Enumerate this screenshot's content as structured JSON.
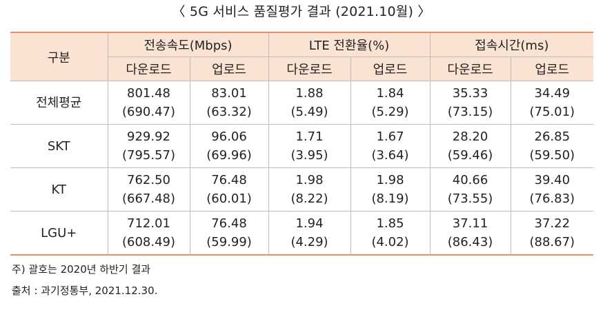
{
  "title": "〈 5G 서비스 품질평가 결과 (2021.10월) 〉",
  "table": {
    "row_header_label": "구분",
    "groups": [
      {
        "label": "전송속도(Mbps)",
        "sub": [
          "다운로드",
          "업로드"
        ]
      },
      {
        "label": "LTE 전환율(%)",
        "sub": [
          "다운로드",
          "업로드"
        ]
      },
      {
        "label": "접속시간(ms)",
        "sub": [
          "다운로드",
          "업로드"
        ]
      }
    ],
    "rows": [
      {
        "label": "전체평균",
        "cells": [
          {
            "main": "801.48",
            "sub": "(690.47)"
          },
          {
            "main": "83.01",
            "sub": "(63.32)"
          },
          {
            "main": "1.88",
            "sub": "(5.49)"
          },
          {
            "main": "1.84",
            "sub": "(5.29)"
          },
          {
            "main": "35.33",
            "sub": "(73.15)"
          },
          {
            "main": "34.49",
            "sub": "(75.01)"
          }
        ]
      },
      {
        "label": "SKT",
        "cells": [
          {
            "main": "929.92",
            "sub": "(795.57)"
          },
          {
            "main": "96.06",
            "sub": "(69.96)"
          },
          {
            "main": "1.71",
            "sub": "(3.95)"
          },
          {
            "main": "1.67",
            "sub": "(3.64)"
          },
          {
            "main": "28.20",
            "sub": "(59.46)"
          },
          {
            "main": "26.85",
            "sub": "(59.50)"
          }
        ]
      },
      {
        "label": "KT",
        "cells": [
          {
            "main": "762.50",
            "sub": "(667.48)"
          },
          {
            "main": "76.48",
            "sub": "(60.01)"
          },
          {
            "main": "1.98",
            "sub": "(8.22)"
          },
          {
            "main": "1.98",
            "sub": "(8.19)"
          },
          {
            "main": "40.66",
            "sub": "(73.55)"
          },
          {
            "main": "39.40",
            "sub": "(76.83)"
          }
        ]
      },
      {
        "label": "LGU+",
        "cells": [
          {
            "main": "712.01",
            "sub": "(608.49)"
          },
          {
            "main": "76.48",
            "sub": "(59.99)"
          },
          {
            "main": "1.94",
            "sub": "(4.29)"
          },
          {
            "main": "1.85",
            "sub": "(4.02)"
          },
          {
            "main": "37.11",
            "sub": "(86.43)"
          },
          {
            "main": "37.22",
            "sub": "(88.67)"
          }
        ]
      }
    ]
  },
  "notes": {
    "footnote": "주) 괄호는 2020년 하반기 결과",
    "source": "출처 : 과기정통부, 2021.12.30."
  },
  "colors": {
    "header_fill": "#fbe3d3",
    "accent_rule": "#e8935f",
    "grid_line": "#bdbdbd",
    "text": "#222222"
  }
}
